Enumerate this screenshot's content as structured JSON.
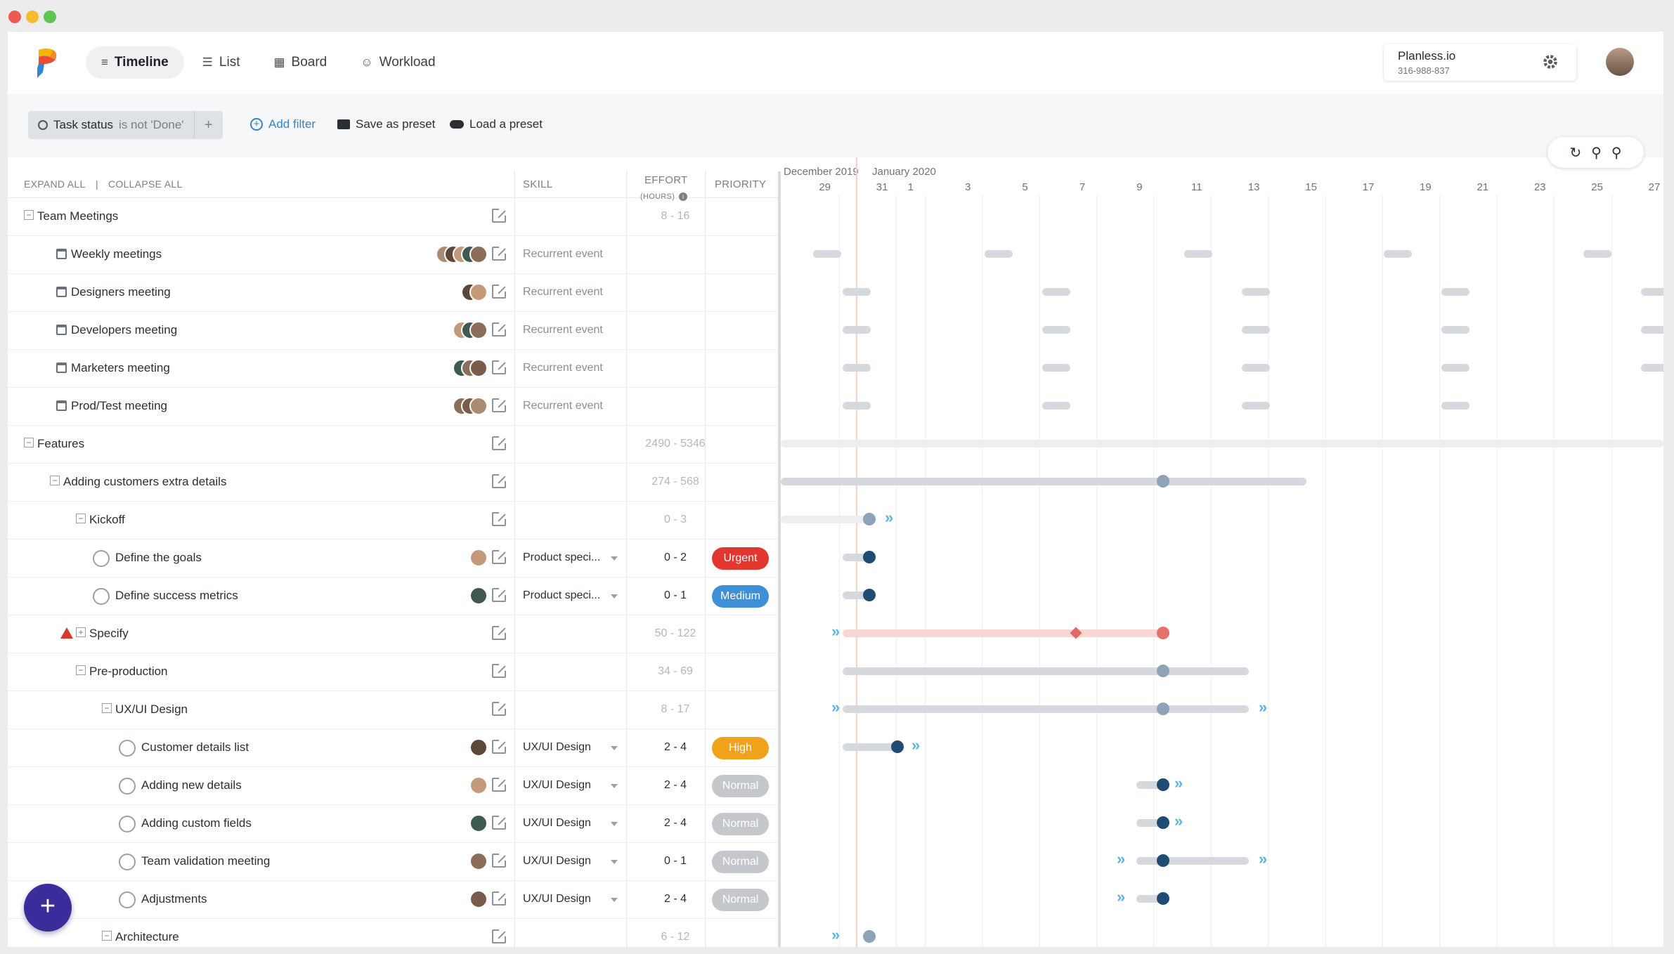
{
  "window": {
    "traffic_lights": [
      "close",
      "minimize",
      "maximize"
    ]
  },
  "nav": {
    "tabs": [
      {
        "label": "Timeline",
        "icon": "timeline-icon",
        "active": true
      },
      {
        "label": "List",
        "icon": "list-icon",
        "active": false
      },
      {
        "label": "Board",
        "icon": "board-icon",
        "active": false
      },
      {
        "label": "Workload",
        "icon": "workload-icon",
        "active": false
      }
    ]
  },
  "account": {
    "name": "Planless.io",
    "phone": "316-988-837"
  },
  "filters": {
    "chip_field": "Task status",
    "chip_condition": "is not 'Done'",
    "add_filter": "Add filter",
    "save_preset": "Save as preset",
    "load_preset": "Load a preset"
  },
  "columns": {
    "expand_all": "EXPAND ALL",
    "separator": "|",
    "collapse_all": "COLLAPSE ALL",
    "skill": "SKILL",
    "effort": "EFFORT",
    "effort_unit": "(HOURS)",
    "priority": "PRIORITY"
  },
  "timeline": {
    "months": [
      "December 2019",
      "January 2020"
    ],
    "days": [
      "29",
      "31",
      "1",
      "3",
      "5",
      "7",
      "9",
      "11",
      "13",
      "15",
      "17",
      "19",
      "21",
      "23",
      "25",
      "27"
    ]
  },
  "rows": [
    {
      "kind": "group",
      "name": "Team Meetings",
      "effort": "8 - 16"
    },
    {
      "kind": "event",
      "name": "Weekly meetings",
      "skill": "Recurrent event"
    },
    {
      "kind": "event",
      "name": "Designers meeting",
      "skill": "Recurrent event"
    },
    {
      "kind": "event",
      "name": "Developers meeting",
      "skill": "Recurrent event"
    },
    {
      "kind": "event",
      "name": "Marketers meeting",
      "skill": "Recurrent event"
    },
    {
      "kind": "event",
      "name": "Prod/Test meeting",
      "skill": "Recurrent event"
    },
    {
      "kind": "group",
      "name": "Features",
      "effort": "2490 - 5346"
    },
    {
      "kind": "group",
      "name": "Adding customers extra details",
      "effort": "274 - 568"
    },
    {
      "kind": "group",
      "name": "Kickoff",
      "effort": "0 - 3"
    },
    {
      "kind": "task",
      "name": "Define the goals",
      "skill": "Product speci...",
      "effort": "0 - 2",
      "priority": "Urgent"
    },
    {
      "kind": "task",
      "name": "Define success metrics",
      "skill": "Product speci...",
      "effort": "0 - 1",
      "priority": "Medium"
    },
    {
      "kind": "group",
      "name": "Specify",
      "effort": "50 - 122"
    },
    {
      "kind": "group",
      "name": "Pre-production",
      "effort": "34 - 69"
    },
    {
      "kind": "group",
      "name": "UX/UI Design",
      "effort": "8 - 17"
    },
    {
      "kind": "task",
      "name": "Customer details list",
      "skill": "UX/UI Design",
      "effort": "2 - 4",
      "priority": "High"
    },
    {
      "kind": "task",
      "name": "Adding new details",
      "skill": "UX/UI Design",
      "effort": "2 - 4",
      "priority": "Normal"
    },
    {
      "kind": "task",
      "name": "Adding custom fields",
      "skill": "UX/UI Design",
      "effort": "2 - 4",
      "priority": "Normal"
    },
    {
      "kind": "task",
      "name": "Team validation meeting",
      "skill": "UX/UI Design",
      "effort": "0 - 1",
      "priority": "Normal"
    },
    {
      "kind": "task",
      "name": "Adjustments",
      "skill": "UX/UI Design",
      "effort": "2 - 4",
      "priority": "Normal"
    },
    {
      "kind": "group",
      "name": "Architecture",
      "effort": "6 - 12"
    }
  ],
  "colors": {
    "urgent": "#e2362e",
    "medium": "#3f8fd6",
    "high": "#f0a31a",
    "normal": "#c4c7cb",
    "accent": "#3b2c9c",
    "bar_gray": "#d5d9dd",
    "dot_dark": "#1f4c73",
    "dot_gray": "#8da3b8",
    "late": "#e8706a"
  },
  "fab": {
    "label": "+"
  }
}
